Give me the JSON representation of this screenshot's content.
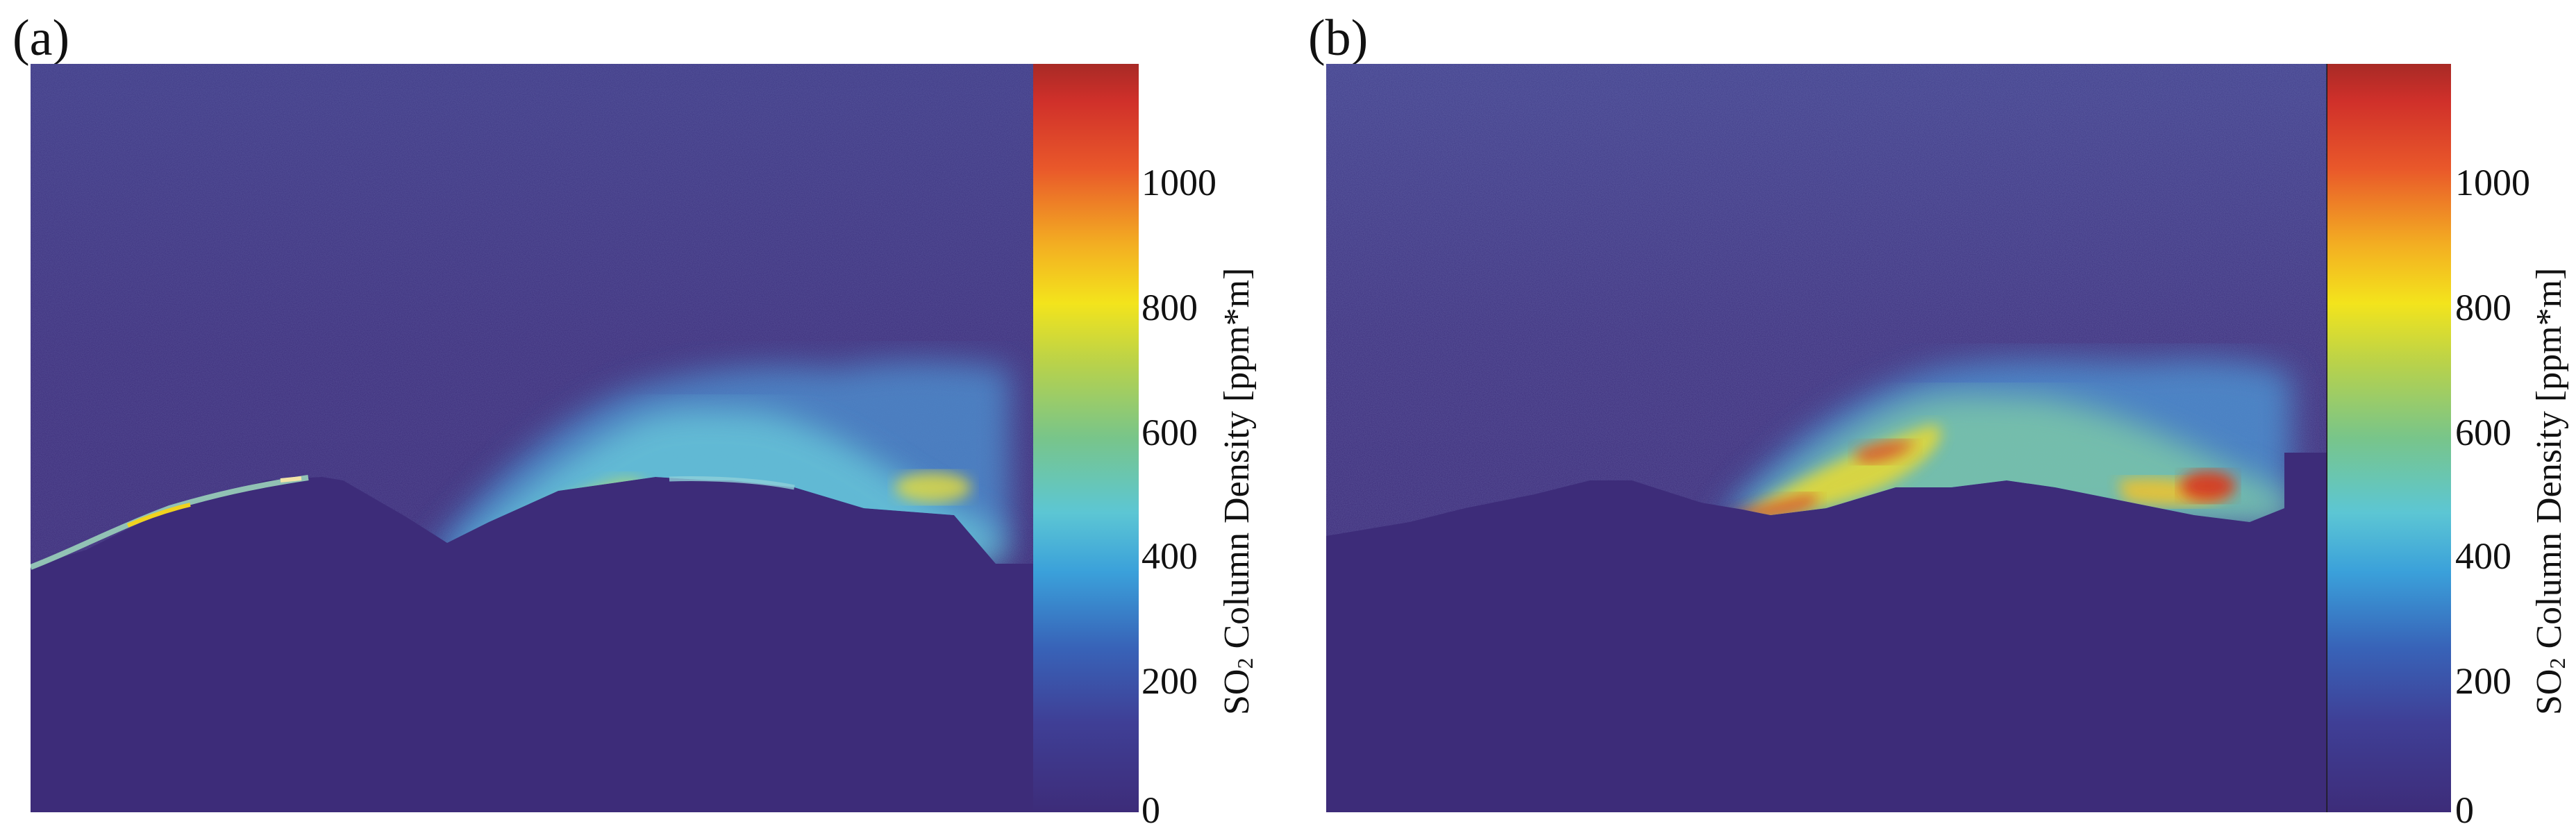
{
  "figure": {
    "panels": [
      {
        "label": "(a)",
        "colorbar": {
          "title_prefix": "SO",
          "title_subscript": "2",
          "title_suffix": " Column Density [ppm*m]",
          "ticks": [
            "0",
            "200",
            "400",
            "600",
            "800",
            "1000"
          ]
        }
      },
      {
        "label": "(b)",
        "colorbar": {
          "title_prefix": "SO",
          "title_subscript": "2",
          "title_suffix": " Column Density [ppm*m]",
          "ticks": [
            "0",
            "200",
            "400",
            "600",
            "800",
            "1000"
          ]
        }
      }
    ],
    "colors": {
      "background": "#3d2c79",
      "low": "#3b5fb4",
      "mid": "#5fc8dc",
      "high": "#f5e51c",
      "max": "#c6241f"
    }
  }
}
